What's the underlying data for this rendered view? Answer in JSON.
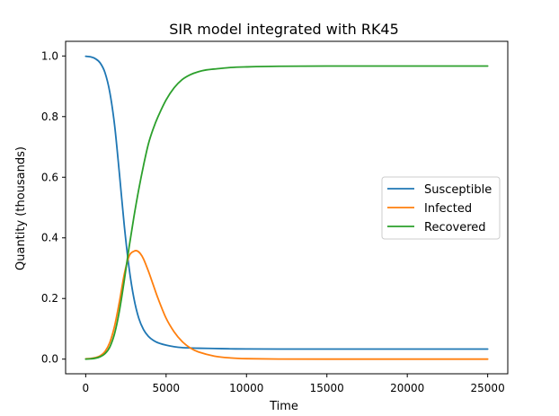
{
  "chart_data": {
    "type": "line",
    "title": "SIR model integrated with RK45",
    "xlabel": "Time",
    "ylabel": "Quantity (thousands)",
    "xlim": [
      -1250,
      26250
    ],
    "ylim": [
      -0.0483,
      1.0483
    ],
    "x_ticks": [
      0,
      5000,
      10000,
      15000,
      20000,
      25000
    ],
    "x_tick_labels": [
      "0",
      "5000",
      "10000",
      "15000",
      "20000",
      "25000"
    ],
    "y_ticks": [
      0.0,
      0.2,
      0.4,
      0.6,
      0.8,
      1.0
    ],
    "y_tick_labels": [
      "0.0",
      "0.2",
      "0.4",
      "0.6",
      "0.8",
      "1.0"
    ],
    "grid": false,
    "legend_position": "center-right",
    "series": [
      {
        "name": "Susceptible",
        "color": "#1f77b4",
        "x": [
          0,
          300,
          600,
          900,
          1200,
          1500,
          1800,
          2100,
          2400,
          2700,
          3000,
          3300,
          3600,
          3900,
          4200,
          4500,
          5000,
          5500,
          6000,
          6500,
          7000,
          8000,
          9000,
          10000,
          12000,
          15000,
          20000,
          25000
        ],
        "y": [
          0.999,
          0.997,
          0.991,
          0.977,
          0.945,
          0.88,
          0.77,
          0.61,
          0.44,
          0.3,
          0.2,
          0.135,
          0.097,
          0.075,
          0.062,
          0.054,
          0.046,
          0.041,
          0.038,
          0.037,
          0.036,
          0.035,
          0.034,
          0.0335,
          0.0333,
          0.0332,
          0.0332,
          0.0332
        ]
      },
      {
        "name": "Infected",
        "color": "#ff7f0e",
        "x": [
          0,
          300,
          600,
          900,
          1200,
          1500,
          1800,
          2100,
          2400,
          2700,
          3000,
          3200,
          3400,
          3600,
          3900,
          4200,
          4500,
          5000,
          5500,
          6000,
          6500,
          7000,
          8000,
          9000,
          10000,
          12000,
          15000,
          20000,
          25000
        ],
        "y": [
          0.001,
          0.002,
          0.005,
          0.011,
          0.025,
          0.055,
          0.11,
          0.19,
          0.28,
          0.34,
          0.356,
          0.357,
          0.348,
          0.33,
          0.29,
          0.245,
          0.2,
          0.135,
          0.09,
          0.058,
          0.037,
          0.024,
          0.01,
          0.004,
          0.0015,
          0.0003,
          0.0,
          0.0,
          0.0
        ]
      },
      {
        "name": "Recovered",
        "color": "#2ca02c",
        "x": [
          0,
          300,
          600,
          900,
          1200,
          1500,
          1800,
          2100,
          2400,
          2700,
          3000,
          3300,
          3600,
          3900,
          4200,
          4500,
          5000,
          5500,
          6000,
          6500,
          7000,
          7500,
          8000,
          9000,
          10000,
          12000,
          15000,
          20000,
          25000
        ],
        "y": [
          0.0,
          0.001,
          0.003,
          0.008,
          0.018,
          0.04,
          0.085,
          0.16,
          0.26,
          0.37,
          0.47,
          0.56,
          0.64,
          0.71,
          0.76,
          0.8,
          0.855,
          0.895,
          0.922,
          0.938,
          0.948,
          0.954,
          0.957,
          0.962,
          0.964,
          0.966,
          0.9667,
          0.9668,
          0.9668
        ]
      }
    ]
  }
}
